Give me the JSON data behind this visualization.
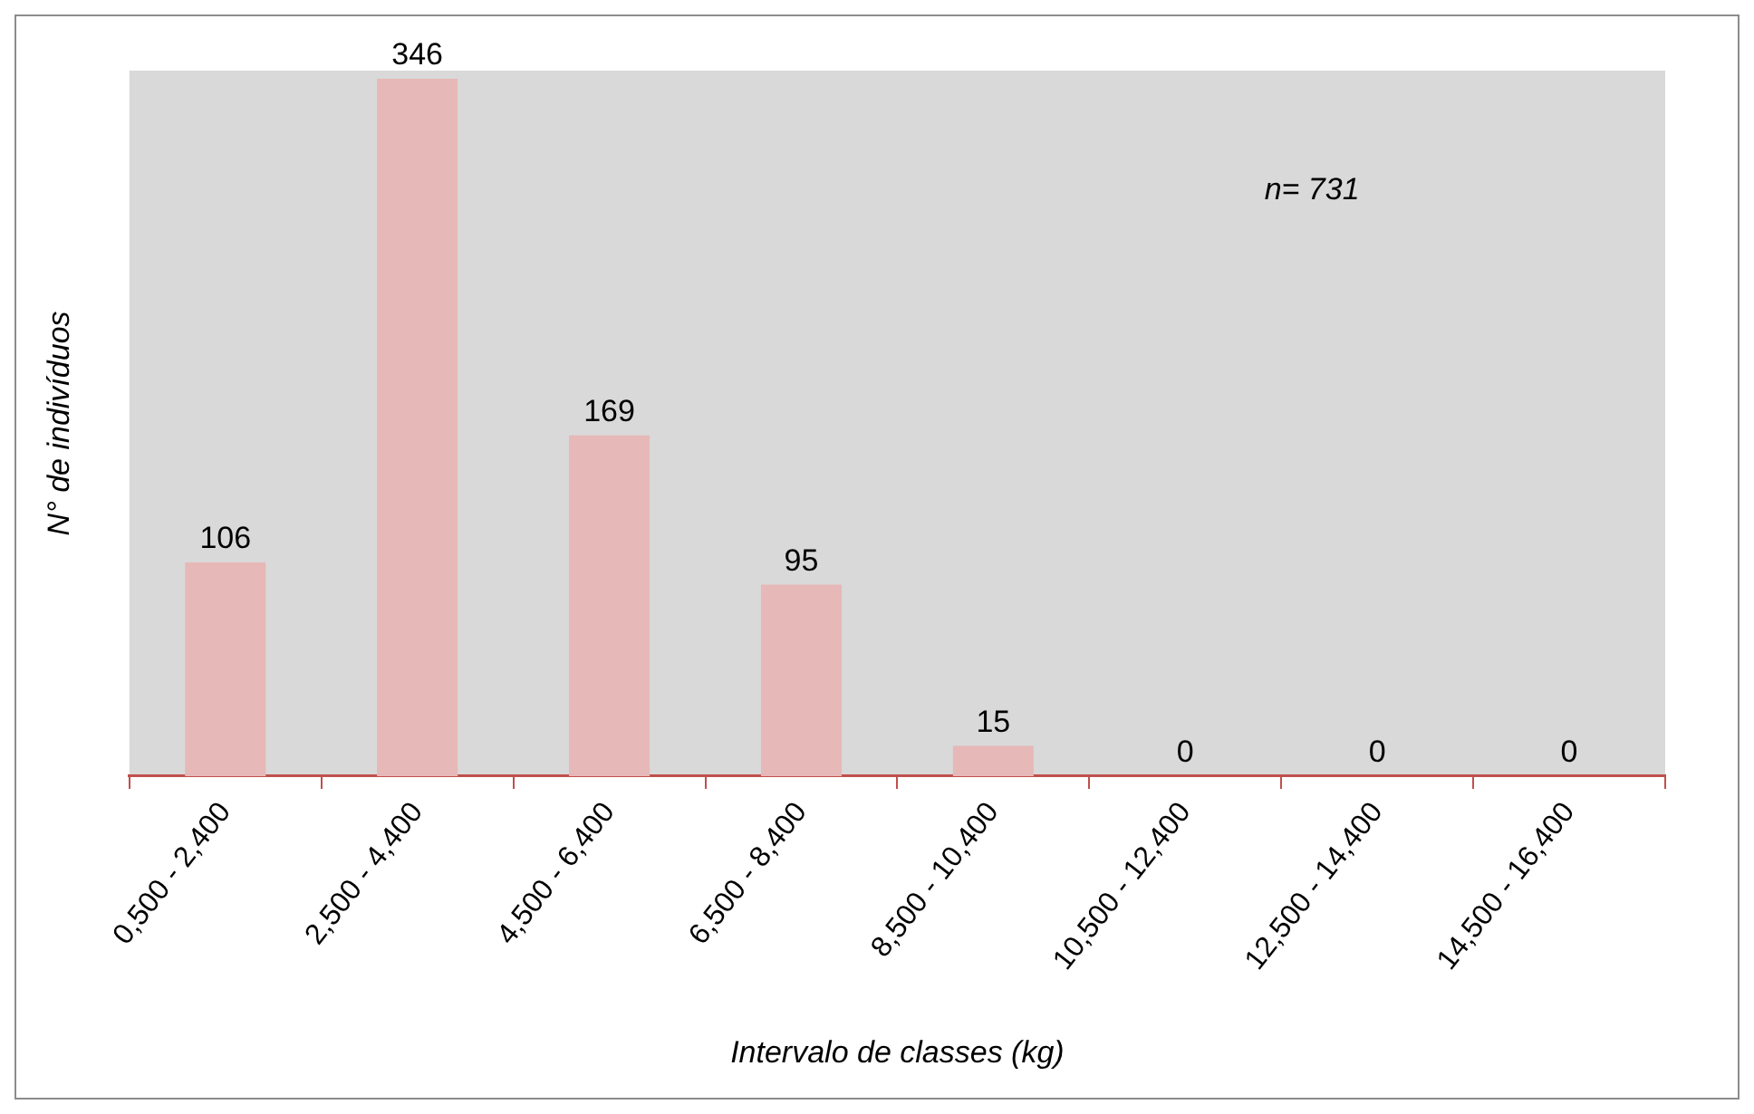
{
  "chart_data": {
    "type": "bar",
    "xlabel": "Intervalo de classes (kg)",
    "ylabel": "N° de indivíduos",
    "categories": [
      "0,500 - 2,400",
      "2,500 - 4,400",
      "4,500 - 6,400",
      "6,500 - 8,400",
      "8,500 - 10,400",
      "10,500 - 12,400",
      "12,500 - 14,400",
      "14,500 - 16,400"
    ],
    "values": [
      106,
      346,
      169,
      95,
      15,
      0,
      0,
      0
    ],
    "color": "#e6b8b7",
    "annotations": [
      "n= 731"
    ],
    "data_labels": true,
    "tick_labels": "x"
  }
}
